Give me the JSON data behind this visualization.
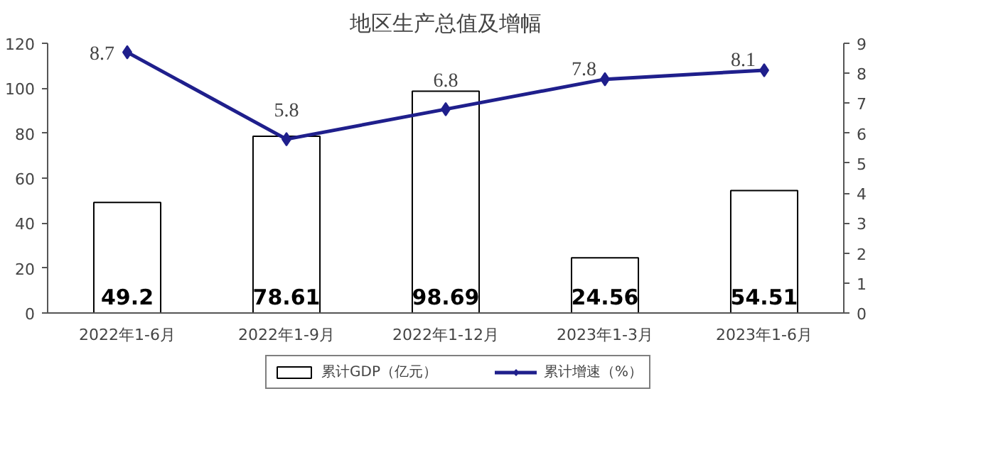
{
  "chart_data": {
    "type": "bar",
    "title": "地区生产总值及增幅",
    "categories": [
      "2022年1-6月",
      "2022年1-9月",
      "2022年1-12月",
      "2023年1-3月",
      "2023年1-6月"
    ],
    "series": [
      {
        "name": "累计GDP（亿元）",
        "color": "#ffffff",
        "values": [
          49.2,
          78.61,
          98.69,
          24.56,
          54.51
        ]
      },
      {
        "name": "累计增速（%）",
        "type": "line",
        "axis": "y2",
        "color": "#1f1f8c",
        "marker": "diamond",
        "values": [
          8.7,
          5.8,
          6.8,
          7.8,
          8.1
        ]
      }
    ],
    "ylim": [
      0,
      120
    ],
    "yticks": [
      0,
      20,
      40,
      60,
      80,
      100,
      120
    ],
    "y2lim": [
      0,
      9
    ],
    "y2ticks": [
      0,
      1,
      2,
      3,
      4,
      5,
      6,
      7,
      8,
      9
    ],
    "data_labels": true,
    "grid": false,
    "legend": "bottom"
  }
}
